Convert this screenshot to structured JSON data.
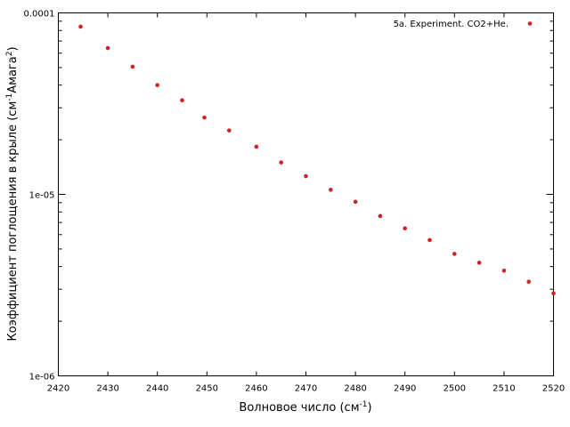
{
  "chart_data": {
    "type": "scatter",
    "title": "",
    "xlabel": "Волновое число (см",
    "xlabel_sup": "-1",
    "xlabel_tail": ")",
    "ylabel_parts": [
      "Коэффициент поглощения в крыле (см",
      "-1",
      "Амага",
      "2",
      ")"
    ],
    "x_scale": "linear",
    "y_scale": "log",
    "xlim": [
      2420,
      2520
    ],
    "ylim": [
      1e-06,
      0.0001
    ],
    "xticks": [
      2420,
      2430,
      2440,
      2450,
      2460,
      2470,
      2480,
      2490,
      2500,
      2510,
      2520
    ],
    "xtick_labels": [
      "2420",
      "2430",
      "2440",
      "2450",
      "2460",
      "2470",
      "2480",
      "2490",
      "2500",
      "2510",
      "2520"
    ],
    "yticks": [
      1e-06,
      1e-05,
      0.0001
    ],
    "ytick_labels": [
      "1e-06",
      "1e-05",
      "0.0001"
    ],
    "grid": false,
    "legend_position": "top-right",
    "series": [
      {
        "name": "5a. Experiment. CO2+He.",
        "color": "#d42020",
        "marker": "dot",
        "x": [
          2424.5,
          2430,
          2435,
          2440,
          2445,
          2449.5,
          2454.5,
          2460,
          2465,
          2470,
          2475,
          2480,
          2485,
          2490,
          2495,
          2500,
          2505,
          2510,
          2515,
          2520
        ],
        "y": [
          8.4e-05,
          6.4e-05,
          5.05e-05,
          4e-05,
          3.3e-05,
          2.65e-05,
          2.25e-05,
          1.83e-05,
          1.5e-05,
          1.26e-05,
          1.06e-05,
          9.1e-06,
          7.6e-06,
          6.5e-06,
          5.6e-06,
          4.7e-06,
          4.2e-06,
          3.8e-06,
          3.3e-06,
          2.85e-06
        ]
      }
    ]
  }
}
